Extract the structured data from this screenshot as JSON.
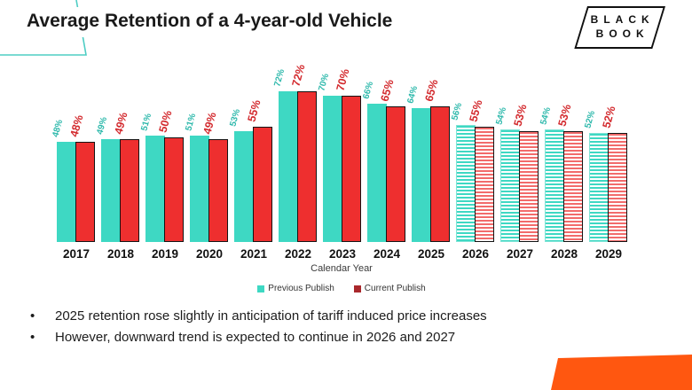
{
  "title": "Average Retention of a 4-year-old Vehicle",
  "logo": {
    "line1": "BLACK",
    "line2": "BOOK"
  },
  "chart_data": {
    "type": "bar",
    "categories": [
      "2017",
      "2018",
      "2019",
      "2020",
      "2021",
      "2022",
      "2023",
      "2024",
      "2025",
      "2026",
      "2027",
      "2028",
      "2029"
    ],
    "series": [
      {
        "name": "Previous Publish",
        "color": "#3ED8C3",
        "values": [
          48,
          49,
          51,
          51,
          53,
          72,
          70,
          66,
          64,
          56,
          54,
          54,
          52
        ]
      },
      {
        "name": "Current Publish",
        "color": "#EE2F2F",
        "values": [
          48,
          49,
          50,
          49,
          55,
          72,
          70,
          65,
          65,
          55,
          53,
          53,
          52
        ]
      }
    ],
    "value_suffix": "%",
    "forecast_categories": [
      "2026",
      "2027",
      "2028",
      "2029"
    ],
    "forecast_style": "horizontal-hatch",
    "xlabel": "Calendar Year",
    "ylabel": "",
    "ylim": [
      0,
      80
    ],
    "grid": false,
    "legend_position": "bottom",
    "value_labels": "rotated-above-bars"
  },
  "legend": {
    "previous_label": "Previous Publish",
    "current_label": "Current Publish"
  },
  "bullets": [
    "2025 retention rose slightly in anticipation of tariff induced price increases",
    "However, downward trend is expected to continue in 2026 and 2027"
  ],
  "colors": {
    "teal_bar": "#3ED8C3",
    "teal_value_label": "#2FB9AC",
    "red_bar": "#EE2F2F",
    "red_value_label": "#D32A2E",
    "legend_current_swatch": "#A9282C",
    "accent_line": "#4ECDC4",
    "orange_shape": "#FF5710"
  }
}
